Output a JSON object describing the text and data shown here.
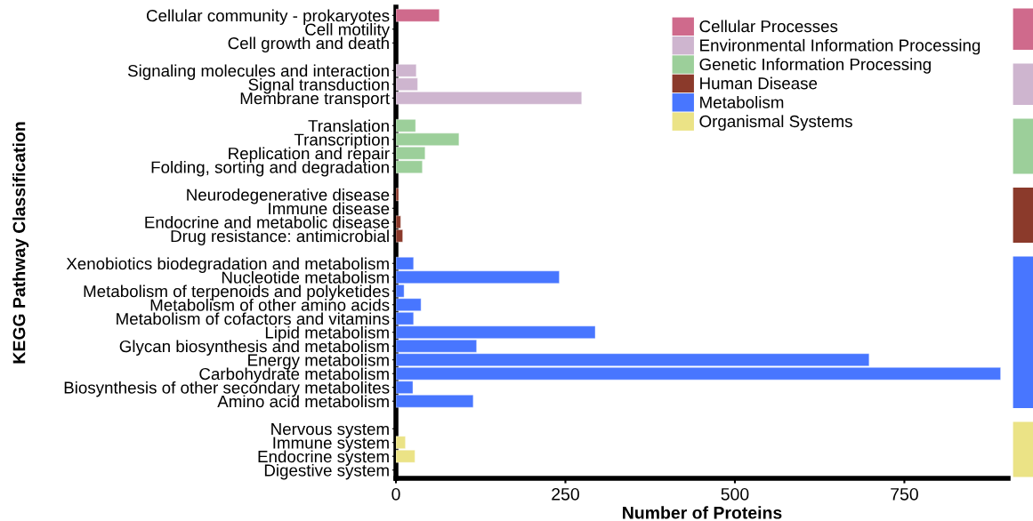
{
  "chart_data": {
    "type": "bar",
    "orientation": "horizontal",
    "xlabel": "Number of Proteins",
    "ylabel": "KEGG Pathway Classification",
    "categories": [
      "Cellular community - prokaryotes",
      "Cell motility",
      "Cell growth and death",
      null,
      "Signaling molecules and interaction",
      "Signal transduction",
      "Membrane transport",
      null,
      "Translation",
      "Transcription",
      "Replication and repair",
      "Folding, sorting and degradation",
      null,
      "Neurodegenerative disease",
      "Immune disease",
      "Endocrine and metabolic disease",
      "Drug resistance: antimicrobial",
      null,
      "Xenobiotics biodegradation and metabolism",
      "Nucleotide metabolism",
      "Metabolism of terpenoids and polyketides",
      "Metabolism of other amino acids",
      "Metabolism of cofactors and vitamins",
      "Lipid metabolism",
      "Glycan biosynthesis and metabolism",
      "Energy metabolism",
      "Carbohydrate metabolism",
      "Biosynthesis of other secondary metabolites",
      "Amino acid metabolism",
      null,
      "Nervous system",
      "Immune system",
      "Endocrine system",
      "Digestive system"
    ],
    "series": [
      {
        "name": "Cellular Processes",
        "color": "#cf6a8c",
        "values": [
          64,
          null,
          null,
          null,
          null,
          null,
          null,
          null,
          null,
          null,
          null,
          null,
          null,
          null,
          null,
          null,
          null,
          null,
          null,
          null,
          null,
          null,
          null,
          null,
          null,
          null,
          null,
          null,
          null,
          null,
          null,
          null,
          null,
          null
        ]
      },
      {
        "name": "Environmental Information Processing",
        "color": "#ceb5cf",
        "values": [
          null,
          null,
          null,
          null,
          30,
          32,
          274,
          null,
          null,
          null,
          null,
          null,
          null,
          null,
          null,
          null,
          null,
          null,
          null,
          null,
          null,
          null,
          null,
          null,
          null,
          null,
          null,
          null,
          null,
          null,
          null,
          null,
          null,
          null
        ]
      },
      {
        "name": "Genetic Information Processing",
        "color": "#9ccf9a",
        "values": [
          null,
          null,
          null,
          null,
          null,
          null,
          null,
          null,
          29,
          93,
          43,
          39,
          null,
          null,
          null,
          null,
          null,
          null,
          null,
          null,
          null,
          null,
          null,
          null,
          null,
          null,
          null,
          null,
          null,
          null,
          null,
          null,
          null,
          null
        ]
      },
      {
        "name": "Human Disease",
        "color": "#8b3a2b",
        "values": [
          null,
          null,
          null,
          null,
          null,
          null,
          null,
          null,
          null,
          null,
          null,
          null,
          null,
          4,
          null,
          7,
          10,
          null,
          null,
          null,
          null,
          null,
          null,
          null,
          null,
          null,
          null,
          null,
          null,
          null,
          null,
          null,
          null,
          null
        ]
      },
      {
        "name": "Metabolism",
        "color": "#4876ff",
        "values": [
          null,
          null,
          null,
          null,
          null,
          null,
          null,
          null,
          null,
          null,
          null,
          null,
          null,
          null,
          null,
          null,
          null,
          null,
          26,
          241,
          12,
          37,
          26,
          294,
          119,
          698,
          892,
          25,
          114,
          null,
          null,
          null,
          null,
          null
        ]
      },
      {
        "name": "Organismal Systems",
        "color": "#ebe386",
        "values": [
          null,
          null,
          null,
          null,
          null,
          null,
          null,
          null,
          null,
          null,
          null,
          null,
          null,
          null,
          null,
          null,
          null,
          null,
          null,
          null,
          null,
          null,
          null,
          null,
          null,
          null,
          null,
          null,
          null,
          null,
          null,
          14,
          28,
          null
        ]
      }
    ],
    "xlim": [
      0,
      903
    ],
    "xticks": [
      0,
      250,
      500,
      750
    ],
    "grid": false,
    "legend": "top right"
  }
}
